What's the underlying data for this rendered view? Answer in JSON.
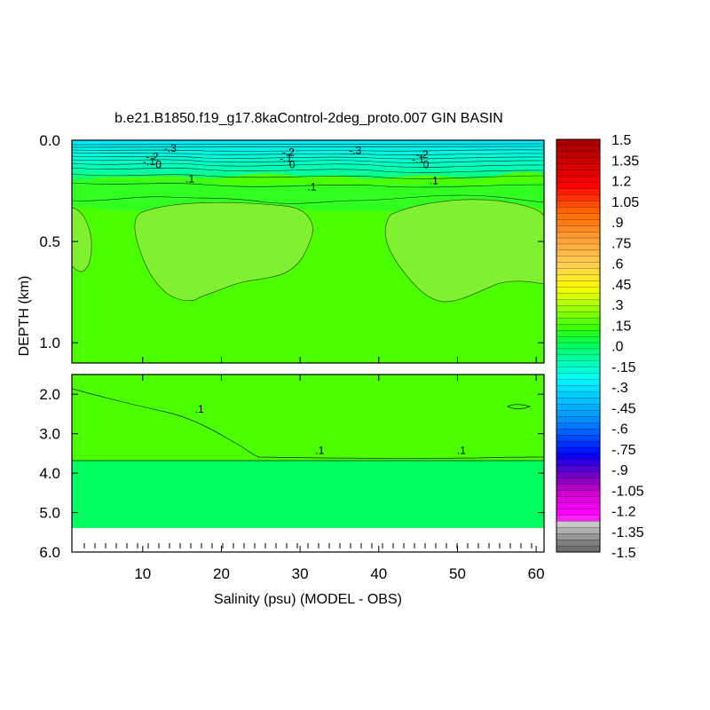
{
  "chart_data": {
    "type": "heatmap",
    "title": "b.e21.B1850.f19_g17.8kaControl-2deg_proto.007 GIN BASIN",
    "xlabel": "Salinity (psu) (MODEL - OBS)",
    "ylabel": "DEPTH (km)",
    "x_ticks": [
      "10",
      "20",
      "30",
      "40",
      "50",
      "60"
    ],
    "x_tick_values": [
      10,
      20,
      30,
      40,
      50,
      60
    ],
    "xlim": [
      1,
      61
    ],
    "upper_panel": {
      "ylim": [
        0.0,
        1.1
      ],
      "y_ticks": [
        "0.0",
        "0.5",
        "1.0"
      ],
      "y_tick_values": [
        0.0,
        0.5,
        1.0
      ]
    },
    "lower_panel": {
      "ylim": [
        1.5,
        6.0
      ],
      "y_ticks": [
        "2.0",
        "3.0",
        "4.0",
        "5.0",
        "6.0"
      ],
      "y_tick_values": [
        2.0,
        3.0,
        4.0,
        5.0,
        6.0
      ]
    },
    "contour_labels": [
      {
        "text": "-.3",
        "x": 13.5,
        "depth": 0.04
      },
      {
        "text": "-.2",
        "x": 11.2,
        "depth": 0.08
      },
      {
        "text": "-.1",
        "x": 10.8,
        "depth": 0.105
      },
      {
        "text": "0",
        "x": 12.0,
        "depth": 0.12
      },
      {
        "text": ".1",
        "x": 16.0,
        "depth": 0.19
      },
      {
        "text": "-.2",
        "x": 28.5,
        "depth": 0.06
      },
      {
        "text": "-.1",
        "x": 28.2,
        "depth": 0.09
      },
      {
        "text": "0",
        "x": 29.0,
        "depth": 0.12
      },
      {
        "text": ".1",
        "x": 31.5,
        "depth": 0.23
      },
      {
        "text": "-.3",
        "x": 37.0,
        "depth": 0.05
      },
      {
        "text": "-.2",
        "x": 45.5,
        "depth": 0.07
      },
      {
        "text": "-.1",
        "x": 45.0,
        "depth": 0.095
      },
      {
        "text": "0",
        "x": 46.0,
        "depth": 0.12
      },
      {
        "text": ".1",
        "x": 47.0,
        "depth": 0.2
      },
      {
        "text": ".1",
        "x": 17.2,
        "depth": 2.38
      },
      {
        "text": ".1",
        "x": 32.5,
        "depth": 3.42
      },
      {
        "text": ".1",
        "x": 50.5,
        "depth": 3.42
      }
    ],
    "colorbar": {
      "labels": [
        "1.5",
        "1.35",
        "1.2",
        "1.05",
        ".9",
        ".75",
        ".6",
        ".45",
        ".3",
        ".15",
        ".0",
        "-.15",
        "-.3",
        "-.45",
        "-.6",
        "-.75",
        "-.9",
        "-1.05",
        "-1.2",
        "-1.35",
        "-1.5"
      ],
      "min": -1.5,
      "max": 1.5,
      "colors_top_to_bottom": [
        "#a80000",
        "#b40000",
        "#c00000",
        "#cc0000",
        "#d80000",
        "#e40000",
        "#f00000",
        "#ff0000",
        "#ff1a00",
        "#ff3300",
        "#ff4c00",
        "#ff6000",
        "#ff7000",
        "#ff7c10",
        "#ff8a20",
        "#ff9830",
        "#ffa43a",
        "#ffb040",
        "#ffbc48",
        "#ffc850",
        "#ffd050",
        "#ffdc40",
        "#ffe830",
        "#fff400",
        "#f0ff00",
        "#d8ff00",
        "#b8ff00",
        "#98ff00",
        "#7cff00",
        "#5cff00",
        "#40ff00",
        "#20ff20",
        "#10ff40",
        "#00ff60",
        "#00ff80",
        "#00ffa0",
        "#00ffc0",
        "#00ffd8",
        "#00fff0",
        "#00f0ff",
        "#00e0ff",
        "#00d0ff",
        "#00c0ff",
        "#00b0ff",
        "#00a0ff",
        "#0090ff",
        "#0078ff",
        "#0060ff",
        "#0048ff",
        "#0030ff",
        "#0018ff",
        "#1000f0",
        "#3000e0",
        "#5000d0",
        "#7000c8",
        "#9000c0",
        "#b000c8",
        "#d000d0",
        "#e000e0",
        "#f000f0",
        "#ff00ff",
        "#ff20ff",
        "#c8c8c8",
        "#b0b0b0",
        "#989898",
        "#808080",
        "#707070"
      ]
    },
    "colors": {
      "background_field": "#4cff00",
      "bright_green": "#62ff00",
      "light_green": "#80f030",
      "deep_green": "#00ff60",
      "surface_cyan": "#00ffd0",
      "missing": "#ffffff"
    }
  }
}
